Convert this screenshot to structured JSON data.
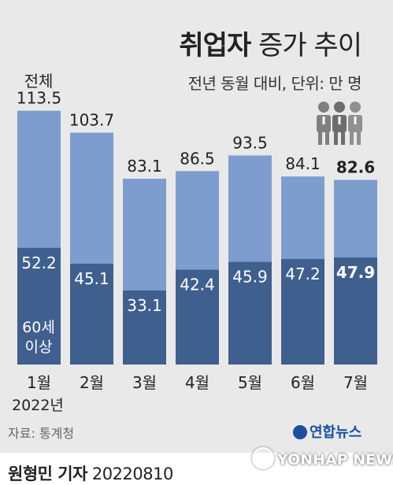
{
  "header": {
    "title_bold": "취업자",
    "title_light": "증가 추이",
    "subtitle": "전년 동월 대비, 단위: 만 명"
  },
  "chart_data": {
    "type": "bar",
    "categories": [
      "1월",
      "2월",
      "3월",
      "4월",
      "5월",
      "6월",
      "7월"
    ],
    "x_year_label": "2022년",
    "series": [
      {
        "name": "전체",
        "values": [
          113.5,
          103.7,
          83.1,
          86.5,
          93.5,
          84.1,
          82.6
        ]
      },
      {
        "name": "60세 이상",
        "values": [
          52.2,
          45.1,
          33.1,
          42.4,
          45.9,
          47.2,
          47.9
        ]
      }
    ],
    "annotations": {
      "total_label": "전체",
      "senior_label_1": "60세",
      "senior_label_2": "이상"
    },
    "ylim": [
      0,
      120
    ],
    "colors": {
      "total": "#7d9dcf",
      "senior": "#3f5f8f",
      "bg": "#e9e9e9"
    },
    "highlight_last": true
  },
  "footer": {
    "source": "자료: 통계청",
    "agency_logo": "연합뉴스",
    "reporter": "원형민 기자",
    "date": "20220810",
    "watermark": "YONHAP NEWS"
  },
  "icons": [
    "people-icon"
  ]
}
